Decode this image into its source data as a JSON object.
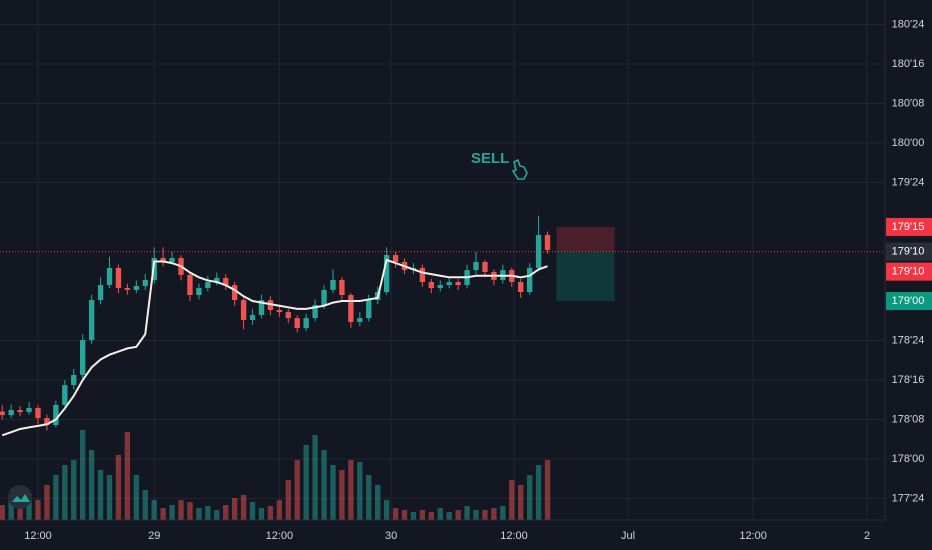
{
  "chart_data": {
    "type": "candlestick",
    "annotation": "SELL",
    "x": [
      0,
      2,
      4,
      6,
      8,
      10,
      12,
      14,
      16,
      18,
      20,
      22,
      24,
      26,
      28,
      30,
      32,
      34,
      36,
      38,
      40,
      42,
      44,
      46,
      48,
      50,
      52,
      54,
      56,
      58,
      60,
      62,
      64,
      66,
      68,
      70,
      72,
      74,
      76,
      78,
      80,
      82,
      84,
      86,
      88,
      90,
      92,
      94,
      96,
      98,
      100,
      102,
      104,
      106,
      108,
      110,
      112,
      114,
      116,
      118,
      120,
      122
    ],
    "open": [
      178.3,
      178.278,
      178.31,
      178.297,
      178.323,
      178.259,
      178.215,
      178.342,
      178.468,
      178.532,
      178.753,
      179.006,
      179.101,
      179.209,
      179.082,
      179.07,
      179.095,
      179.133,
      179.272,
      179.247,
      179.272,
      179.165,
      179.038,
      179.082,
      179.12,
      179.146,
      179.101,
      179.006,
      178.88,
      178.911,
      179.006,
      178.943,
      178.93,
      178.892,
      178.829,
      178.892,
      178.975,
      179.07,
      179.133,
      179.038,
      178.867,
      178.892,
      179.006,
      179.057,
      179.291,
      179.247,
      179.196,
      179.209,
      179.12,
      179.082,
      179.101,
      179.12,
      179.101,
      179.196,
      179.247,
      179.184,
      179.133,
      179.196,
      179.12,
      179.057,
      179.209,
      179.418
    ],
    "high": [
      178.34,
      178.345,
      178.335,
      178.36,
      178.34,
      178.28,
      178.37,
      178.5,
      178.57,
      178.79,
      179.04,
      179.15,
      179.28,
      179.23,
      179.11,
      179.13,
      179.17,
      179.34,
      179.34,
      179.31,
      179.29,
      179.18,
      179.11,
      179.16,
      179.18,
      179.17,
      179.12,
      179.02,
      178.95,
      179.04,
      179.03,
      178.97,
      178.95,
      178.91,
      178.92,
      179.01,
      179.1,
      179.2,
      179.15,
      179.05,
      178.93,
      179.04,
      179.09,
      179.34,
      179.31,
      179.27,
      179.24,
      179.23,
      179.14,
      179.13,
      179.15,
      179.14,
      179.23,
      179.31,
      179.26,
      179.2,
      179.23,
      179.21,
      179.14,
      179.24,
      179.54,
      179.44
    ],
    "low": [
      178.25,
      178.26,
      178.27,
      178.28,
      178.22,
      178.18,
      178.2,
      178.32,
      178.44,
      178.51,
      178.73,
      178.98,
      179.08,
      179.05,
      179.04,
      179.05,
      179.07,
      179.11,
      179.22,
      179.23,
      179.13,
      179.0,
      179.01,
      179.06,
      179.1,
      179.07,
      178.97,
      178.82,
      178.85,
      178.89,
      178.91,
      178.9,
      178.86,
      178.8,
      178.81,
      178.87,
      178.95,
      179.05,
      179.01,
      178.83,
      178.84,
      178.87,
      178.98,
      179.04,
      179.21,
      179.17,
      179.17,
      179.09,
      179.05,
      179.06,
      179.08,
      179.07,
      179.08,
      179.17,
      179.15,
      179.1,
      179.11,
      179.09,
      179.02,
      179.04,
      179.19,
      179.3
    ],
    "close": [
      178.278,
      178.31,
      178.297,
      178.323,
      178.259,
      178.215,
      178.342,
      178.468,
      178.532,
      178.753,
      179.006,
      179.101,
      179.209,
      179.082,
      179.07,
      179.095,
      179.133,
      179.272,
      179.247,
      179.272,
      179.165,
      179.038,
      179.082,
      179.12,
      179.146,
      179.101,
      179.006,
      178.88,
      178.911,
      179.006,
      178.943,
      178.93,
      178.892,
      178.829,
      178.892,
      178.975,
      179.07,
      179.133,
      179.038,
      178.867,
      178.892,
      179.006,
      179.057,
      179.291,
      179.247,
      179.196,
      179.209,
      179.12,
      179.082,
      179.101,
      179.12,
      179.101,
      179.196,
      179.247,
      179.184,
      179.133,
      179.196,
      179.12,
      179.057,
      179.209,
      179.418,
      179.323
    ],
    "ma": [
      178.15,
      178.17,
      178.19,
      178.2,
      178.21,
      178.22,
      178.25,
      178.32,
      178.4,
      178.5,
      178.58,
      178.63,
      178.66,
      178.68,
      178.7,
      178.71,
      178.79,
      179.25,
      179.25,
      179.24,
      179.22,
      179.18,
      179.15,
      179.13,
      179.12,
      179.1,
      179.07,
      179.03,
      179.0,
      178.99,
      178.98,
      178.97,
      178.96,
      178.95,
      178.95,
      178.96,
      178.97,
      178.99,
      179.0,
      179.0,
      179.0,
      179.01,
      179.02,
      179.26,
      179.24,
      179.22,
      179.2,
      179.18,
      179.17,
      179.16,
      179.15,
      179.15,
      179.15,
      179.16,
      179.16,
      179.16,
      179.16,
      179.16,
      179.15,
      179.16,
      179.2,
      179.22
    ],
    "volume": [
      15,
      20,
      30,
      25,
      20,
      35,
      45,
      55,
      60,
      90,
      70,
      50,
      45,
      65,
      88,
      45,
      30,
      20,
      12,
      15,
      20,
      18,
      12,
      14,
      10,
      15,
      22,
      25,
      18,
      12,
      14,
      20,
      40,
      60,
      75,
      85,
      70,
      55,
      50,
      60,
      58,
      45,
      35,
      20,
      12,
      10,
      8,
      10,
      8,
      12,
      8,
      10,
      14,
      10,
      10,
      12,
      14,
      40,
      35,
      45,
      55,
      60
    ],
    "vlim": [
      0,
      100
    ],
    "up_color": "#26a69a",
    "down_color": "#ef5350",
    "ma_color": "#f5f0e6",
    "xlim": [
      -0.5,
      197.5
    ],
    "ylim": [
      177.614,
      180.905
    ],
    "grid": true,
    "xticks": [
      {
        "value": 8,
        "label": "12:00"
      },
      {
        "value": 34,
        "label": "29"
      },
      {
        "value": 62,
        "label": "12:00"
      },
      {
        "value": 87,
        "label": "30"
      },
      {
        "value": 114.5,
        "label": "12:00"
      },
      {
        "value": 140,
        "label": "Jul"
      },
      {
        "value": 168,
        "label": "12:00"
      },
      {
        "value": 193.5,
        "label": "2"
      }
    ],
    "yticks": [
      {
        "value": 180.75,
        "label": "180'24"
      },
      {
        "value": 180.5,
        "label": "180'16"
      },
      {
        "value": 180.25,
        "label": "180'08"
      },
      {
        "value": 180.0,
        "label": "180'00"
      },
      {
        "value": 179.75,
        "label": "179'24"
      },
      {
        "value": 178.75,
        "label": "178'24"
      },
      {
        "value": 178.5,
        "label": "178'16"
      },
      {
        "value": 178.25,
        "label": "178'08"
      },
      {
        "value": 178.0,
        "label": "178'00"
      },
      {
        "value": 177.75,
        "label": "177'24"
      }
    ],
    "price_tags": [
      {
        "value": 179.46875,
        "label": "179'15",
        "color": "#f23645"
      },
      {
        "value": 179.3125,
        "label": "179'10",
        "color": "#2a2e39"
      },
      {
        "value": 179.3125,
        "label": "179'10",
        "color": "#f23645"
      },
      {
        "value": 179.0,
        "label": "179'00",
        "color": "#089981"
      }
    ],
    "position": {
      "entry": 179.3125,
      "stop": 179.46875,
      "target": 179.0,
      "x_start": 124,
      "x_end": 137
    }
  }
}
